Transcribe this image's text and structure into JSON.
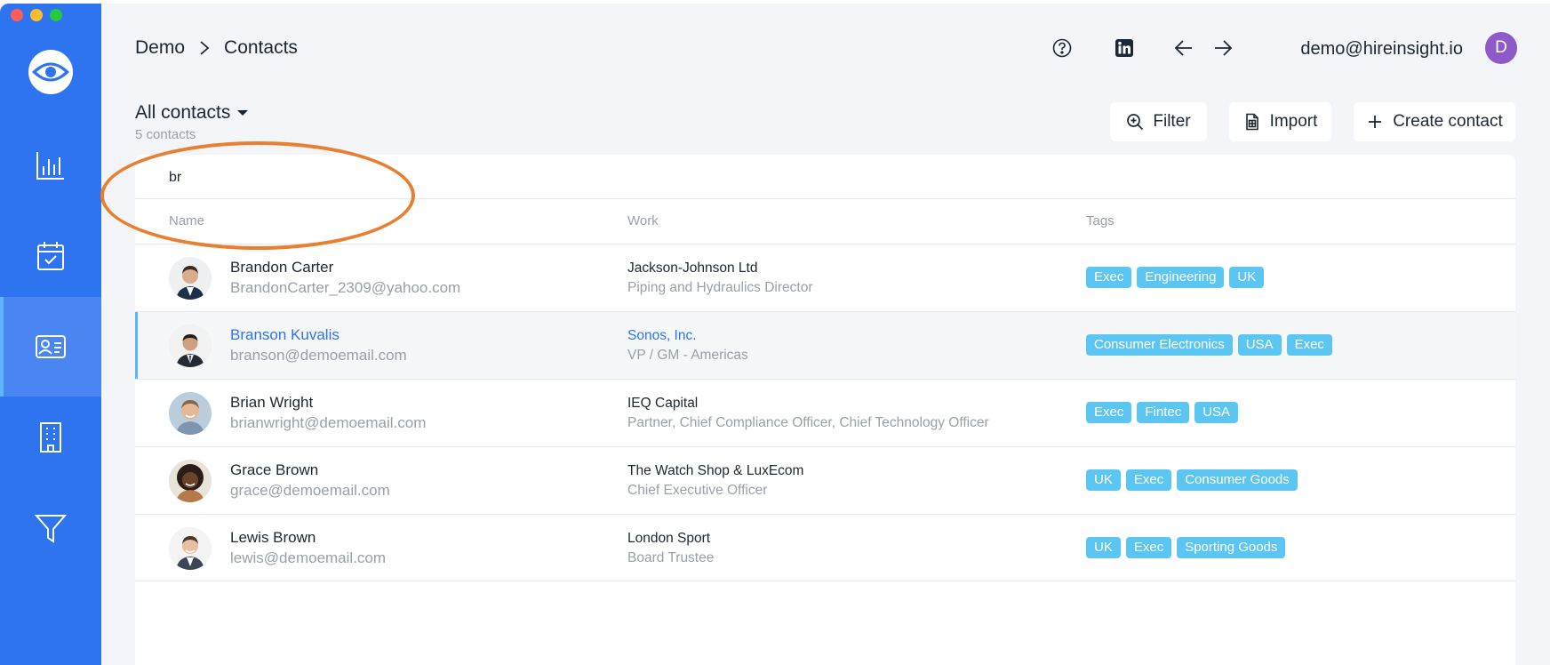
{
  "window": {
    "traffic_lights": {
      "red": "#fd5f57",
      "yellow": "#febc2e",
      "green": "#28c840"
    }
  },
  "sidebar": {
    "brand_color": "#2e73f0",
    "logo_icon": "eye-icon",
    "items": [
      {
        "icon": "bar-chart-icon",
        "active": false
      },
      {
        "icon": "calendar-check-icon",
        "active": false
      },
      {
        "icon": "contact-card-icon",
        "active": true
      },
      {
        "icon": "building-icon",
        "active": false
      },
      {
        "icon": "funnel-icon",
        "active": false
      }
    ]
  },
  "header": {
    "breadcrumb": [
      "Demo",
      "Contacts"
    ],
    "icons": [
      "help-icon",
      "linkedin-icon",
      "back-arrow-icon",
      "forward-arrow-icon"
    ],
    "user_email": "demo@hireinsight.io",
    "avatar_letter": "D",
    "avatar_color": "#8e59c9"
  },
  "view": {
    "title": "All contacts",
    "count": "5 contacts"
  },
  "toolbar": {
    "filter_label": "Filter",
    "import_label": "Import",
    "create_label": "Create contact"
  },
  "search": {
    "value": "br"
  },
  "table": {
    "columns": [
      "Name",
      "Work",
      "Tags"
    ],
    "tag_color": "#5cc6f2",
    "rows": [
      {
        "name": "Brandon Carter",
        "email": "BrandonCarter_2309@yahoo.com",
        "company": "Jackson-Johnson Ltd",
        "role": "Piping and Hydraulics Director",
        "tags": [
          "Exec",
          "Engineering",
          "UK"
        ],
        "selected": false
      },
      {
        "name": "Branson Kuvalis",
        "email": "branson@demoemail.com",
        "company": "Sonos, Inc.",
        "role": "VP / GM - Americas",
        "tags": [
          "Consumer Electronics",
          "USA",
          "Exec"
        ],
        "selected": true
      },
      {
        "name": "Brian Wright",
        "email": "brianwright@demoemail.com",
        "company": "IEQ Capital",
        "role": "Partner, Chief Compliance Officer, Chief Technology Officer",
        "tags": [
          "Exec",
          "Fintec",
          "USA"
        ],
        "selected": false
      },
      {
        "name": "Grace Brown",
        "email": "grace@demoemail.com",
        "company": "The Watch Shop & LuxEcom",
        "role": "Chief Executive Officer",
        "tags": [
          "UK",
          "Exec",
          "Consumer Goods"
        ],
        "selected": false
      },
      {
        "name": "Lewis Brown",
        "email": "lewis@demoemail.com",
        "company": "London Sport",
        "role": "Board Trustee",
        "tags": [
          "UK",
          "Exec",
          "Sporting Goods"
        ],
        "selected": false
      }
    ]
  },
  "annotation": {
    "color": "#e97f31"
  }
}
